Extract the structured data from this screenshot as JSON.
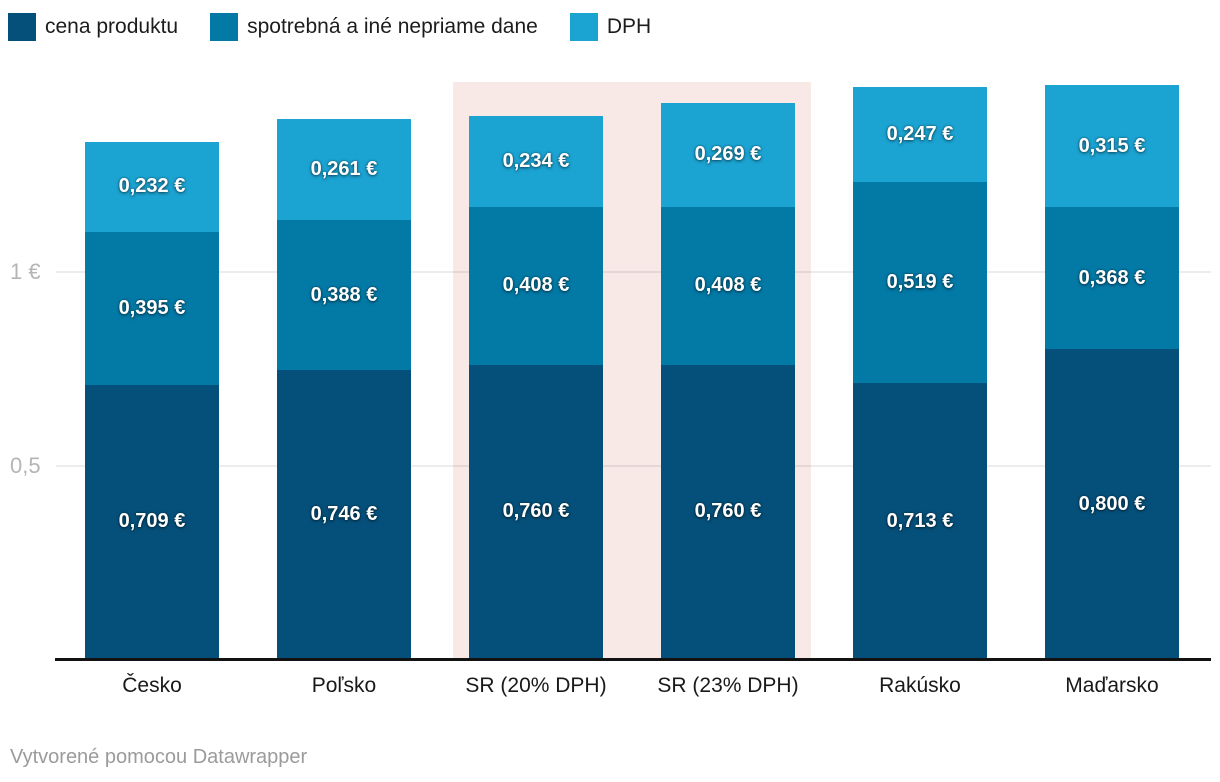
{
  "legend": {
    "items": [
      {
        "label": "cena produktu",
        "color": "#05507A"
      },
      {
        "label": "spotrebná a iné nepriame dane",
        "color": "#0379A6"
      },
      {
        "label": "DPH",
        "color": "#1BA3D2"
      }
    ]
  },
  "chart_data": {
    "type": "bar",
    "stacked": true,
    "categories": [
      "Česko",
      "Poľsko",
      "SR (20% DPH)",
      "SR (23% DPH)",
      "Rakúsko",
      "Maďarsko"
    ],
    "series": [
      {
        "name": "cena produktu",
        "color": "#05507A",
        "values": [
          0.709,
          0.746,
          0.76,
          0.76,
          0.713,
          0.8
        ],
        "labels": [
          "0,709 €",
          "0,746 €",
          "0,760 €",
          "0,760 €",
          "0,713 €",
          "0,800 €"
        ]
      },
      {
        "name": "spotrebná a iné nepriame dane",
        "color": "#0379A6",
        "values": [
          0.395,
          0.388,
          0.408,
          0.408,
          0.519,
          0.368
        ],
        "labels": [
          "0,395 €",
          "0,388 €",
          "0,408 €",
          "0,408 €",
          "0,519 €",
          "0,368 €"
        ]
      },
      {
        "name": "DPH",
        "color": "#1BA3D2",
        "values": [
          0.232,
          0.261,
          0.234,
          0.269,
          0.247,
          0.315
        ],
        "labels": [
          "0,232 €",
          "0,261 €",
          "0,234 €",
          "0,269 €",
          "0,247 €",
          "0,315 €"
        ]
      }
    ],
    "totals": [
      1.336,
      1.395,
      1.402,
      1.437,
      1.479,
      1.483
    ],
    "y_ticks": [
      {
        "value": 1.0,
        "label": "1 €"
      },
      {
        "value": 0.5,
        "label": "0,5"
      }
    ],
    "ylim": [
      0,
      1.49
    ],
    "grid": true,
    "legend_position": "top",
    "highlight": {
      "category_indices": [
        2,
        3
      ],
      "categories": [
        "SR (20% DPH)",
        "SR (23% DPH)"
      ],
      "color": "#F8E8E6"
    }
  },
  "footer": {
    "credit": "Vytvorené pomocou Datawrapper"
  }
}
